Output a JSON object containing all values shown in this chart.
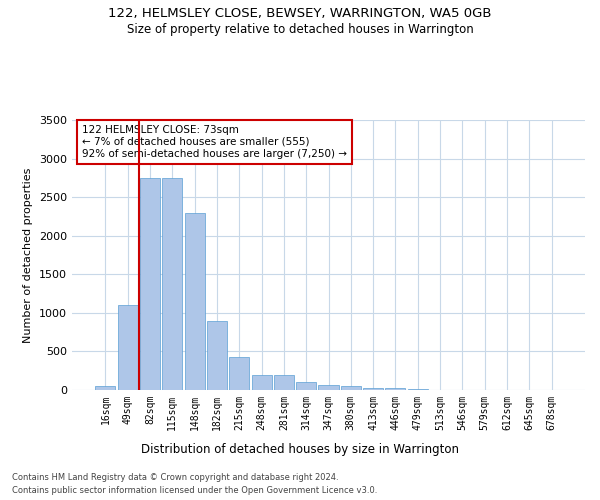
{
  "title1": "122, HELMSLEY CLOSE, BEWSEY, WARRINGTON, WA5 0GB",
  "title2": "Size of property relative to detached houses in Warrington",
  "xlabel": "Distribution of detached houses by size in Warrington",
  "ylabel": "Number of detached properties",
  "footer1": "Contains HM Land Registry data © Crown copyright and database right 2024.",
  "footer2": "Contains public sector information licensed under the Open Government Licence v3.0.",
  "annotation_line1": "122 HELMSLEY CLOSE: 73sqm",
  "annotation_line2": "← 7% of detached houses are smaller (555)",
  "annotation_line3": "92% of semi-detached houses are larger (7,250) →",
  "bar_labels": [
    "16sqm",
    "49sqm",
    "82sqm",
    "115sqm",
    "148sqm",
    "182sqm",
    "215sqm",
    "248sqm",
    "281sqm",
    "314sqm",
    "347sqm",
    "380sqm",
    "413sqm",
    "446sqm",
    "479sqm",
    "513sqm",
    "546sqm",
    "579sqm",
    "612sqm",
    "645sqm",
    "678sqm"
  ],
  "bar_values": [
    50,
    1100,
    2750,
    2750,
    2300,
    900,
    430,
    200,
    200,
    110,
    70,
    55,
    30,
    20,
    10,
    5,
    3,
    2,
    1,
    1,
    0
  ],
  "bar_color": "#aec6e8",
  "bar_edgecolor": "#5a9fd4",
  "vline_color": "#cc0000",
  "annotation_box_edgecolor": "#cc0000",
  "background_color": "#ffffff",
  "grid_color": "#c8d8e8",
  "ylim": [
    0,
    3500
  ],
  "yticks": [
    0,
    500,
    1000,
    1500,
    2000,
    2500,
    3000,
    3500
  ],
  "vline_pos": 1.5,
  "figsize": [
    6.0,
    5.0
  ],
  "dpi": 100
}
